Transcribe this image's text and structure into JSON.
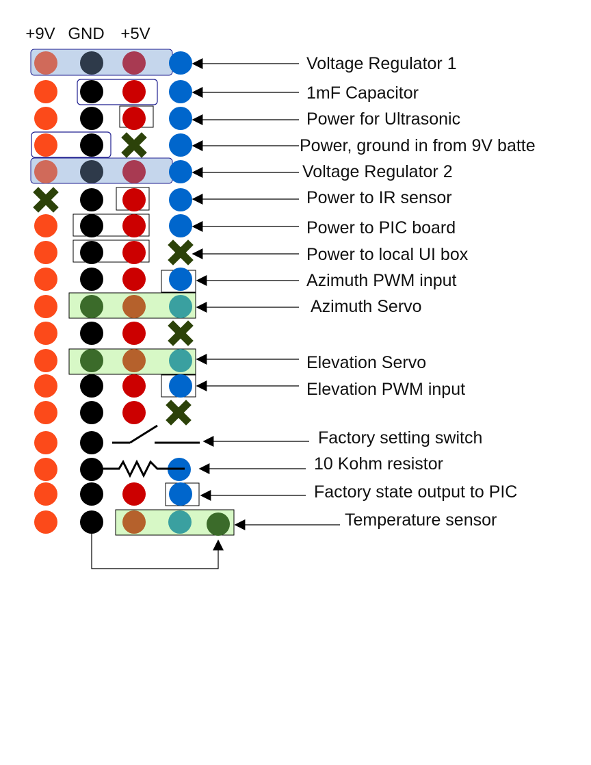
{
  "headers": [
    "+9V",
    "GND",
    "+5V"
  ],
  "labels": [
    "Voltage Regulator 1",
    "1mF Capacitor",
    "Power for Ultrasonic",
    "Power, ground in from 9V batte",
    "Voltage Regulator 2",
    "Power to IR sensor",
    "Power to PIC board",
    "Power to local UI box",
    "Azimuth PWM input",
    "Azimuth Servo",
    "Elevation Servo",
    "Elevation PWM input",
    "Factory setting switch",
    "10 Kohm resistor",
    "Factory state output to PIC",
    "Temperature sensor"
  ],
  "colors": {
    "v9": "#fc4a1a",
    "gnd": "#000000",
    "v5": "#cc0000",
    "signal": "#0066cc",
    "unused_x": "#2c4209",
    "servo_brown": "#b5612c",
    "servo_green": "#3b6b2a",
    "servo_teal": "#3aa0a0",
    "regulator_fill": "#c5d6ec",
    "servo_fill": "#d7f8c6",
    "box_blue": "#1f1f8f"
  }
}
